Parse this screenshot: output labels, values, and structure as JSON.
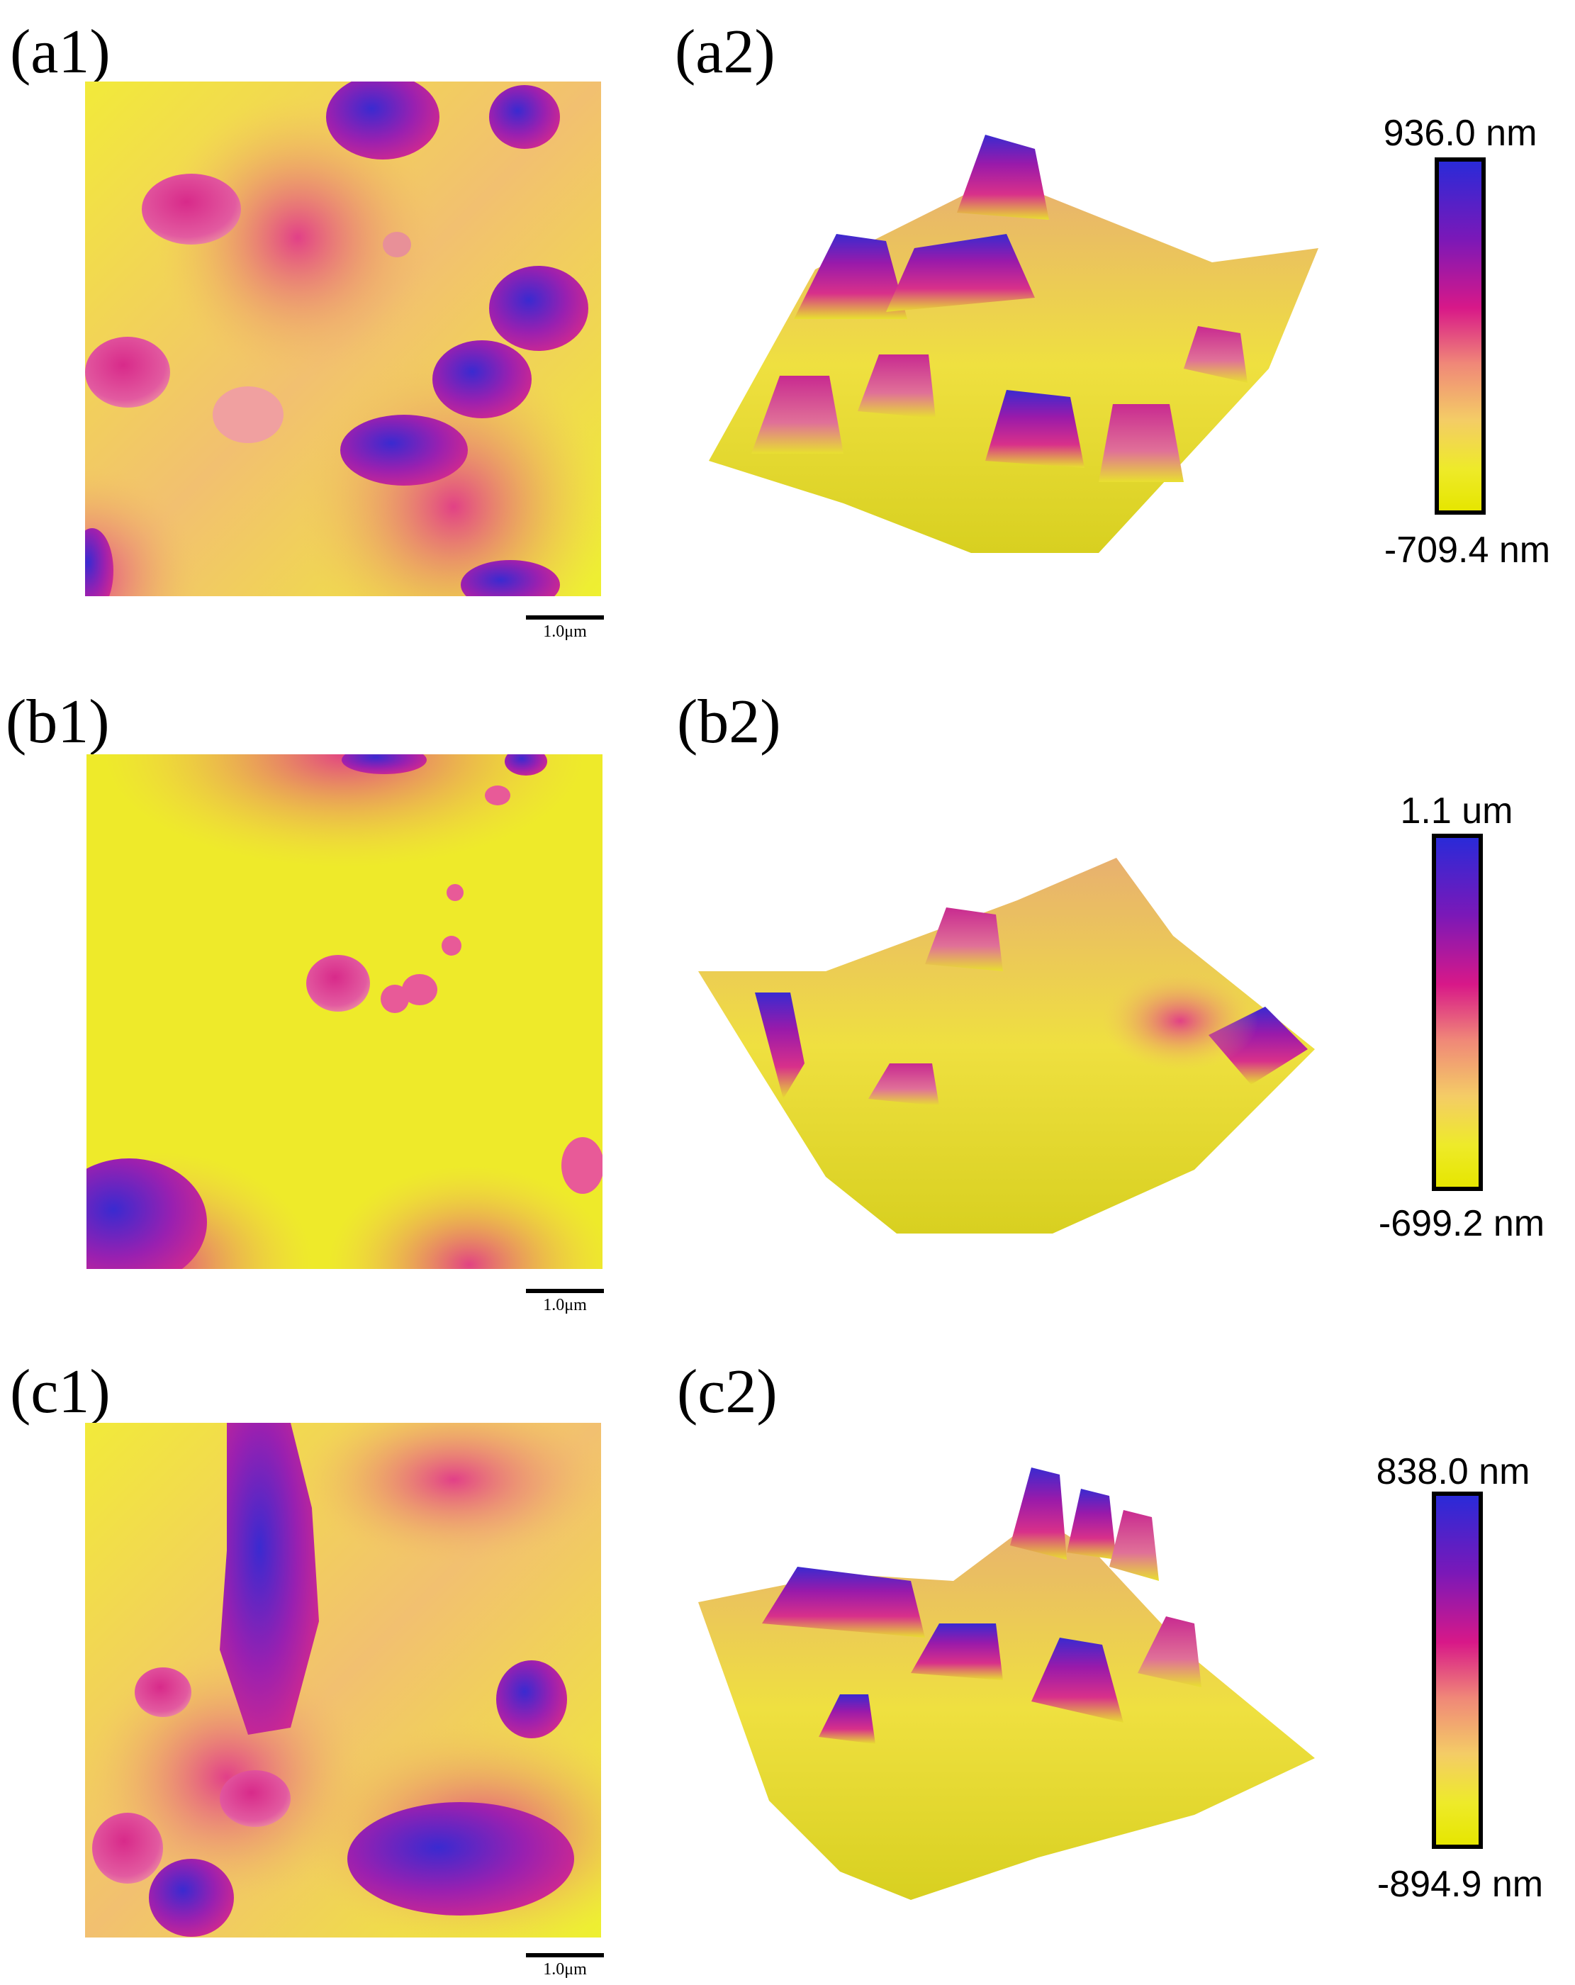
{
  "panels": {
    "a1": {
      "label": "(a1)",
      "scale": "1.0μm"
    },
    "a2": {
      "label": "(a2)",
      "cbar_max": "936.0 nm",
      "cbar_min": "-709.4 nm"
    },
    "b1": {
      "label": "(b1)",
      "scale": "1.0μm"
    },
    "b2": {
      "label": "(b2)",
      "cbar_max": "1.1 um",
      "cbar_min": "-699.2 nm"
    },
    "c1": {
      "label": "(c1)",
      "scale": "1.0μm"
    },
    "c2": {
      "label": "(c2)",
      "cbar_max": "838.0 nm",
      "cbar_min": "-894.9 nm"
    }
  },
  "colors": {
    "high": "#2a2ad8",
    "upper": "#7a18b8",
    "mid": "#d81888",
    "low": "#f4cc66",
    "base": "#eeea2a"
  }
}
